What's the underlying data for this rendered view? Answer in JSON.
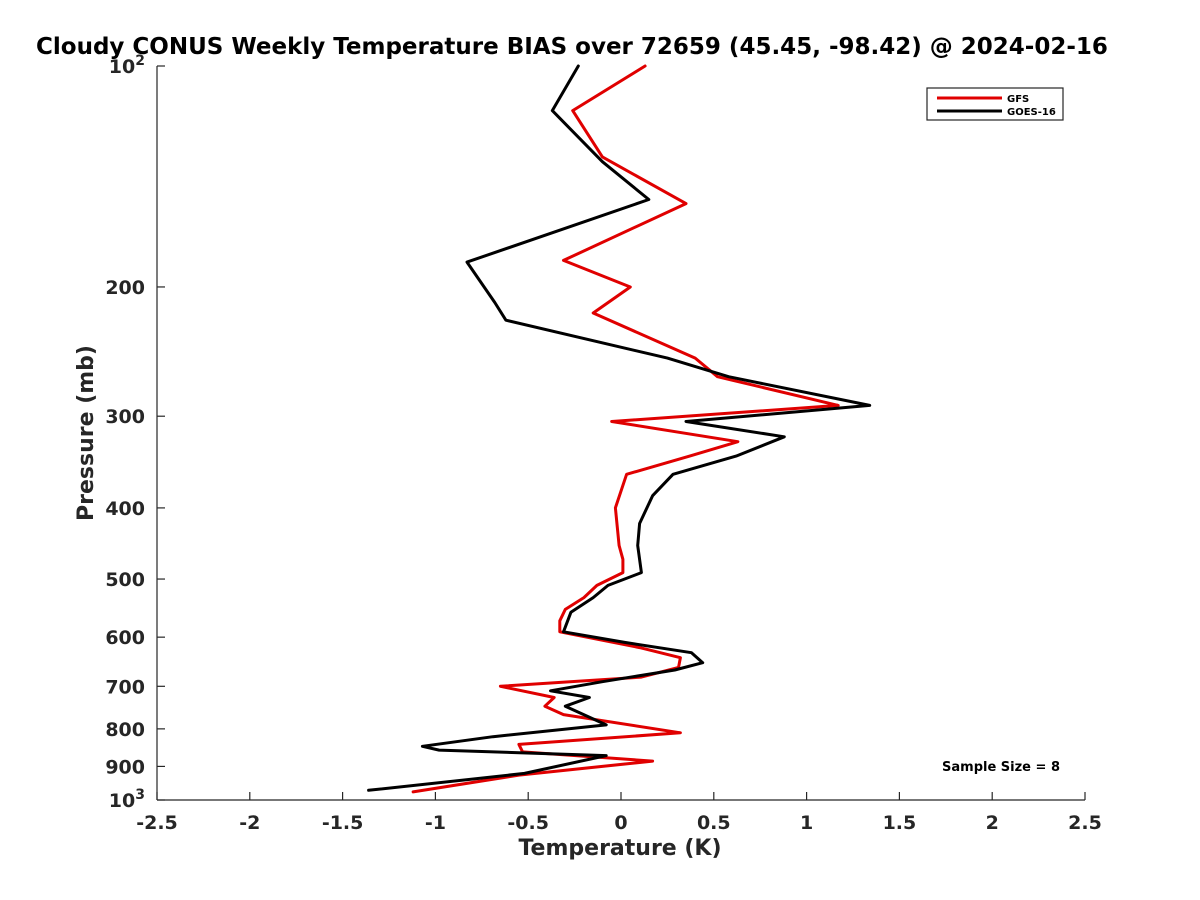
{
  "chart_data": {
    "type": "line",
    "title": "Cloudy CONUS Weekly Temperature BIAS over 72659 (45.45, -98.42) @ 2024-02-16",
    "xlabel": "Temperature (K)",
    "ylabel": "Pressure (mb)",
    "xlim": [
      -2.5,
      2.5
    ],
    "ylim": [
      1000,
      100
    ],
    "y_scale": "log",
    "x_ticks": [
      "-2.5",
      "-2",
      "-1.5",
      "-1",
      "-0.5",
      "0",
      "0.5",
      "1",
      "1.5",
      "2",
      "2.5"
    ],
    "y_ticks": [
      {
        "value": 100,
        "label": "10",
        "sup": "2"
      },
      {
        "value": 200,
        "label": "200",
        "sup": ""
      },
      {
        "value": 300,
        "label": "300",
        "sup": ""
      },
      {
        "value": 400,
        "label": "400",
        "sup": ""
      },
      {
        "value": 500,
        "label": "500",
        "sup": ""
      },
      {
        "value": 600,
        "label": "600",
        "sup": ""
      },
      {
        "value": 700,
        "label": "700",
        "sup": ""
      },
      {
        "value": 800,
        "label": "800",
        "sup": ""
      },
      {
        "value": 900,
        "label": "900",
        "sup": ""
      },
      {
        "value": 1000,
        "label": "10",
        "sup": "3"
      }
    ],
    "grid": false,
    "legend_position": "top-right",
    "annotation": "Sample Size = 8",
    "series": [
      {
        "name": "GFS",
        "color": "#e00000",
        "points": [
          [
            0.13,
            100
          ],
          [
            -0.26,
            115
          ],
          [
            -0.1,
            133
          ],
          [
            0.35,
            154
          ],
          [
            -0.31,
            184
          ],
          [
            0.05,
            200
          ],
          [
            -0.15,
            217
          ],
          [
            0.4,
            250
          ],
          [
            0.52,
            265
          ],
          [
            1.17,
            290
          ],
          [
            -0.05,
            305
          ],
          [
            0.63,
            325
          ],
          [
            0.37,
            340
          ],
          [
            0.03,
            360
          ],
          [
            -0.03,
            400
          ],
          [
            -0.01,
            450
          ],
          [
            0.01,
            470
          ],
          [
            0.01,
            490
          ],
          [
            -0.13,
            510
          ],
          [
            -0.2,
            530
          ],
          [
            -0.3,
            550
          ],
          [
            -0.33,
            570
          ],
          [
            -0.33,
            590
          ],
          [
            0.1,
            620
          ],
          [
            0.32,
            640
          ],
          [
            0.31,
            660
          ],
          [
            0.11,
            680
          ],
          [
            -0.65,
            700
          ],
          [
            -0.36,
            725
          ],
          [
            -0.41,
            745
          ],
          [
            -0.31,
            765
          ],
          [
            0.32,
            810
          ],
          [
            -0.55,
            840
          ],
          [
            -0.53,
            860
          ],
          [
            0.17,
            885
          ],
          [
            -0.55,
            925
          ],
          [
            -1.12,
            975
          ]
        ]
      },
      {
        "name": "GOES-16",
        "color": "#000000",
        "points": [
          [
            -0.23,
            100
          ],
          [
            -0.37,
            115
          ],
          [
            -0.1,
            135
          ],
          [
            0.15,
            152
          ],
          [
            -0.83,
            185
          ],
          [
            -0.68,
            210
          ],
          [
            -0.62,
            222
          ],
          [
            0.25,
            250
          ],
          [
            0.58,
            265
          ],
          [
            1.34,
            290
          ],
          [
            0.35,
            305
          ],
          [
            0.88,
            320
          ],
          [
            0.62,
            340
          ],
          [
            0.28,
            360
          ],
          [
            0.17,
            385
          ],
          [
            0.1,
            420
          ],
          [
            0.09,
            450
          ],
          [
            0.11,
            490
          ],
          [
            -0.07,
            510
          ],
          [
            -0.15,
            530
          ],
          [
            -0.27,
            555
          ],
          [
            -0.31,
            590
          ],
          [
            0.02,
            610
          ],
          [
            0.38,
            630
          ],
          [
            0.44,
            650
          ],
          [
            0.29,
            665
          ],
          [
            -0.1,
            690
          ],
          [
            -0.38,
            710
          ],
          [
            -0.17,
            725
          ],
          [
            -0.3,
            745
          ],
          [
            -0.08,
            790
          ],
          [
            -0.69,
            820
          ],
          [
            -1.07,
            845
          ],
          [
            -0.98,
            855
          ],
          [
            -0.08,
            870
          ],
          [
            -0.52,
            920
          ],
          [
            -1.36,
            970
          ]
        ]
      }
    ]
  }
}
